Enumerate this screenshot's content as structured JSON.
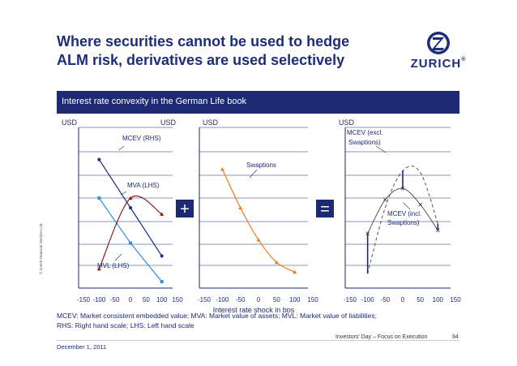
{
  "header": {
    "title_line1": "Where securities cannot be used to hedge",
    "title_line2": "ALM risk, derivatives are used selectively",
    "logo_text": "ZURICH",
    "logo_reg": "®"
  },
  "banner": {
    "text": "Interest rate convexity in the German Life book"
  },
  "side_copyright": "© Zurich Financial Services Ltd",
  "operators": {
    "plus": "+",
    "equals": "="
  },
  "colors": {
    "navy": "#1c2a73",
    "blue_line": "#1c2a8a",
    "light_blue": "#2a8fd6",
    "dark_red": "#8b1a1a",
    "orange": "#f07a20",
    "gray": "#555555"
  },
  "chart_data": [
    {
      "type": "line",
      "title": "",
      "left_unit": "USD",
      "right_unit": "USD",
      "x_ticks": [
        "-150",
        "-100",
        "-50",
        "0",
        "50",
        "100",
        "150"
      ],
      "series": [
        {
          "name": "MCEV (RHS)",
          "axis": "right",
          "x": [
            -100,
            0,
            100
          ],
          "y": [
            1.2,
            5.6,
            4.6
          ]
        },
        {
          "name": "MVA (LHS)",
          "axis": "left",
          "x": [
            -100,
            0,
            100
          ],
          "y": [
            8.0,
            5.0,
            2.0
          ]
        },
        {
          "name": "MVL (LHS)",
          "axis": "left",
          "x": [
            -100,
            0,
            100
          ],
          "y": [
            5.6,
            2.8,
            0.4
          ]
        }
      ]
    },
    {
      "type": "line",
      "left_unit": "USD",
      "x_ticks": [
        "-150",
        "-100",
        "-50",
        "0",
        "50",
        "100",
        "150"
      ],
      "xlabel": "Interest rate shock in bps",
      "series": [
        {
          "name": "Swaptions",
          "x": [
            -100,
            -50,
            0,
            50,
            100
          ],
          "y": [
            7.4,
            5.0,
            3.0,
            1.6,
            1.0
          ]
        }
      ]
    },
    {
      "type": "line",
      "left_unit": "USD",
      "x_ticks": [
        "-150",
        "-100",
        "-50",
        "0",
        "50",
        "100",
        "150"
      ],
      "series": [
        {
          "name": "MCEV (excl. Swaptions)",
          "x": [
            -100,
            -50,
            0,
            50,
            100
          ],
          "y": [
            0.9,
            5.0,
            7.3,
            7.2,
            4.0
          ]
        },
        {
          "name": "MCEV (incl. Swaptions)",
          "x": [
            -100,
            -50,
            0,
            50,
            100
          ],
          "y": [
            3.4,
            5.5,
            6.2,
            5.2,
            3.6
          ]
        }
      ],
      "annotations": [
        "MCEV (excl. Swaptions)",
        "MCEV (incl. Swaptions)"
      ]
    }
  ],
  "labels": {
    "c1_mcev": "MCEV (RHS)",
    "c1_mva": "MVA (LHS)",
    "c1_mvl": "MVL (LHS)",
    "c2_swaptions": "Swaptions",
    "c3_excl_1": "MCEV (excl.",
    "c3_excl_2": "Swaptions)",
    "c3_incl_1": "MCEV (incl.",
    "c3_incl_2": "Swaptions)"
  },
  "footer": {
    "note_line1": "MCEV: Market consistent embedded value; MVA: Market value of assets; MVL: Market value of liabilities;",
    "note_line2": "RHS: Right hand scale; LHS: Left hand scale",
    "date": "December 1, 2011",
    "event": "Investors' Day – Focus on Execution",
    "page": "94"
  }
}
